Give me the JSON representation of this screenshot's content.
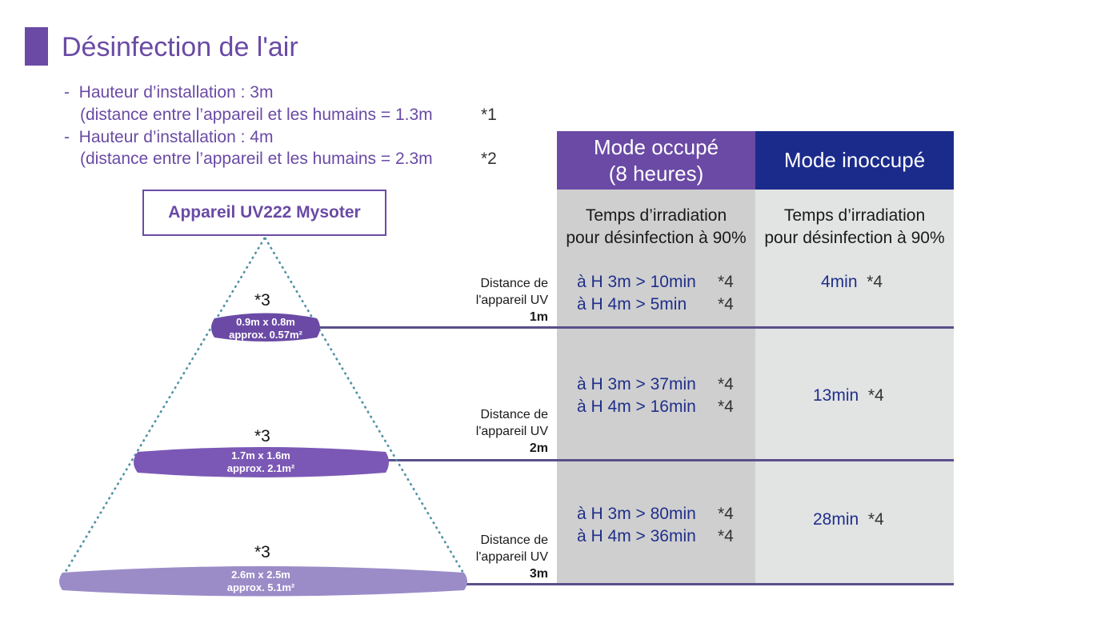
{
  "title": "Désinfection de l'air",
  "bullets": [
    {
      "dash": "-",
      "text": "Hauteur d’installation : 3m"
    },
    {
      "text": "(distance entre l’appareil et les humains = 1.3m",
      "note": "*1"
    },
    {
      "dash": "-",
      "text": "Hauteur d’installation : 4m"
    },
    {
      "text": "(distance entre l’appareil et les humains = 2.3m",
      "note": "*2"
    }
  ],
  "device": "Appareil UV222 Mysoter",
  "colors": {
    "purple": "#6a4aa5",
    "navy": "#1b2b8c",
    "grey_dark": "#cfcfcf",
    "grey_light": "#e2e3e3"
  },
  "headers": {
    "occupied_line1": "Mode occupé",
    "occupied_line2": "(8 heures)",
    "unoccupied": "Mode inoccupé"
  },
  "subheaders": {
    "line1": "Temps d’irradiation",
    "line2": "pour désinfection à 90%"
  },
  "rows": [
    {
      "dist_line1": "Distance de",
      "dist_line2": "l'appareil UV",
      "dist_value": "1m",
      "occ_h3": "à H 3m > 10min",
      "occ_h4": "à H 4m > 5min",
      "note": "*4",
      "inocc": "4min",
      "cone_note": "*3",
      "area_dims": "0.9m x 0.8m",
      "area_approx": "approx. 0.57m²"
    },
    {
      "dist_line1": "Distance de",
      "dist_line2": "l'appareil UV",
      "dist_value": "2m",
      "occ_h3": "à H 3m > 37min",
      "occ_h4": "à H 4m > 16min",
      "note": "*4",
      "inocc": "13min",
      "cone_note": "*3",
      "area_dims": "1.7m x 1.6m",
      "area_approx": "approx. 2.1m²"
    },
    {
      "dist_line1": "Distance de",
      "dist_line2": "l'appareil UV",
      "dist_value": "3m",
      "occ_h3": "à H 3m > 80min",
      "occ_h4": "à H 4m > 36min",
      "note": "*4",
      "inocc": "28min",
      "cone_note": "*3",
      "area_dims": "2.6m x 2.5m",
      "area_approx": "approx. 5.1m²"
    }
  ]
}
